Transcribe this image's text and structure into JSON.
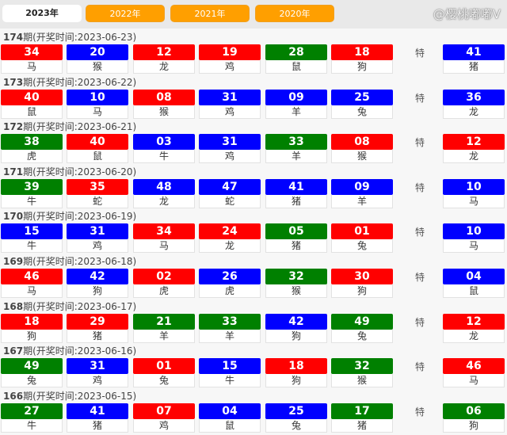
{
  "tabs": [
    "2023年",
    "2022年",
    "2021年",
    "2020年"
  ],
  "active_tab": "2023年",
  "special_label": "特",
  "title_prefix": "期(开奖时间:",
  "title_suffix": ")",
  "colors": {
    "r": "#ff0000",
    "b": "#0000ff",
    "g": "#008000"
  },
  "draws": [
    {
      "issue": "174",
      "date": "2023-06-23",
      "balls": [
        [
          "34",
          "r",
          "马"
        ],
        [
          "20",
          "b",
          "猴"
        ],
        [
          "12",
          "r",
          "龙"
        ],
        [
          "19",
          "r",
          "鸡"
        ],
        [
          "28",
          "g",
          "鼠"
        ],
        [
          "18",
          "r",
          "狗"
        ]
      ],
      "special": [
        "41",
        "b",
        "猪"
      ]
    },
    {
      "issue": "173",
      "date": "2023-06-22",
      "balls": [
        [
          "40",
          "r",
          "鼠"
        ],
        [
          "10",
          "b",
          "马"
        ],
        [
          "08",
          "r",
          "猴"
        ],
        [
          "31",
          "b",
          "鸡"
        ],
        [
          "09",
          "b",
          "羊"
        ],
        [
          "25",
          "b",
          "兔"
        ]
      ],
      "special": [
        "36",
        "b",
        "龙"
      ]
    },
    {
      "issue": "172",
      "date": "2023-06-21",
      "balls": [
        [
          "38",
          "g",
          "虎"
        ],
        [
          "40",
          "r",
          "鼠"
        ],
        [
          "03",
          "b",
          "牛"
        ],
        [
          "31",
          "b",
          "鸡"
        ],
        [
          "33",
          "g",
          "羊"
        ],
        [
          "08",
          "r",
          "猴"
        ]
      ],
      "special": [
        "12",
        "r",
        "龙"
      ]
    },
    {
      "issue": "171",
      "date": "2023-06-20",
      "balls": [
        [
          "39",
          "g",
          "牛"
        ],
        [
          "35",
          "r",
          "蛇"
        ],
        [
          "48",
          "b",
          "龙"
        ],
        [
          "47",
          "b",
          "蛇"
        ],
        [
          "41",
          "b",
          "猪"
        ],
        [
          "09",
          "b",
          "羊"
        ]
      ],
      "special": [
        "10",
        "b",
        "马"
      ]
    },
    {
      "issue": "170",
      "date": "2023-06-19",
      "balls": [
        [
          "15",
          "b",
          "牛"
        ],
        [
          "31",
          "b",
          "鸡"
        ],
        [
          "34",
          "r",
          "马"
        ],
        [
          "24",
          "r",
          "龙"
        ],
        [
          "05",
          "g",
          "猪"
        ],
        [
          "01",
          "r",
          "兔"
        ]
      ],
      "special": [
        "10",
        "b",
        "马"
      ]
    },
    {
      "issue": "169",
      "date": "2023-06-18",
      "balls": [
        [
          "46",
          "r",
          "马"
        ],
        [
          "42",
          "b",
          "狗"
        ],
        [
          "02",
          "r",
          "虎"
        ],
        [
          "26",
          "b",
          "虎"
        ],
        [
          "32",
          "g",
          "猴"
        ],
        [
          "30",
          "r",
          "狗"
        ]
      ],
      "special": [
        "04",
        "b",
        "鼠"
      ]
    },
    {
      "issue": "168",
      "date": "2023-06-17",
      "balls": [
        [
          "18",
          "r",
          "狗"
        ],
        [
          "29",
          "r",
          "猪"
        ],
        [
          "21",
          "g",
          "羊"
        ],
        [
          "33",
          "g",
          "羊"
        ],
        [
          "42",
          "b",
          "狗"
        ],
        [
          "49",
          "g",
          "兔"
        ]
      ],
      "special": [
        "12",
        "r",
        "龙"
      ]
    },
    {
      "issue": "167",
      "date": "2023-06-16",
      "balls": [
        [
          "49",
          "g",
          "兔"
        ],
        [
          "31",
          "b",
          "鸡"
        ],
        [
          "01",
          "r",
          "兔"
        ],
        [
          "15",
          "b",
          "牛"
        ],
        [
          "18",
          "r",
          "狗"
        ],
        [
          "32",
          "g",
          "猴"
        ]
      ],
      "special": [
        "46",
        "r",
        "马"
      ]
    },
    {
      "issue": "166",
      "date": "2023-06-15",
      "balls": [
        [
          "27",
          "g",
          "牛"
        ],
        [
          "41",
          "b",
          "猪"
        ],
        [
          "07",
          "r",
          "鸡"
        ],
        [
          "04",
          "b",
          "鼠"
        ],
        [
          "25",
          "b",
          "兔"
        ],
        [
          "17",
          "g",
          "猪"
        ]
      ],
      "special": [
        "06",
        "g",
        "狗"
      ]
    }
  ],
  "watermark": "@樱桃嘟嘟V"
}
